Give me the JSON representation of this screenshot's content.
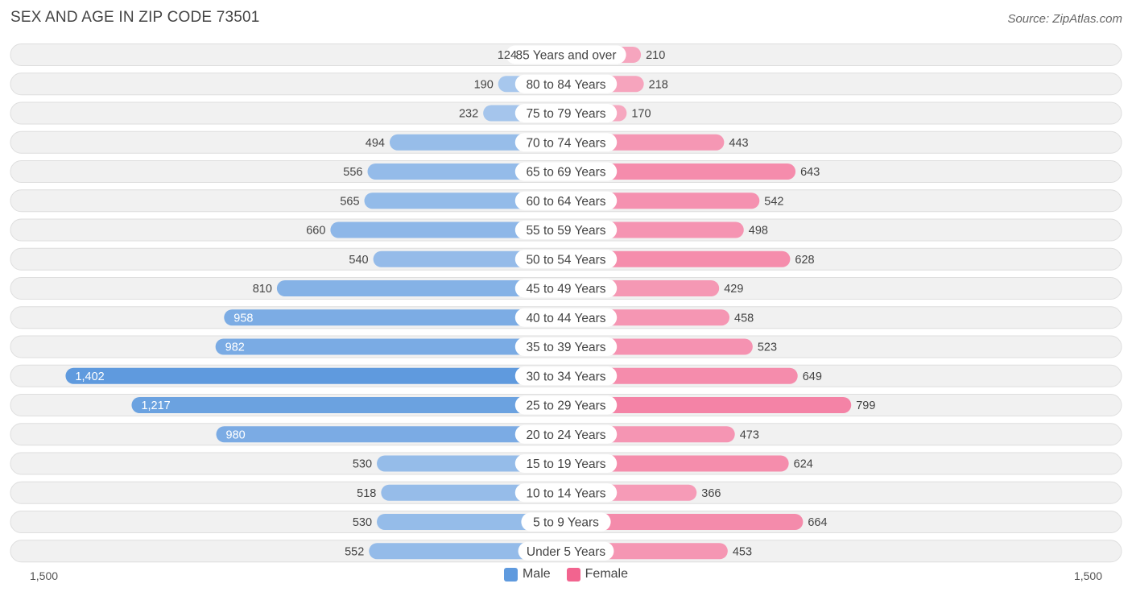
{
  "title": "SEX AND AGE IN ZIP CODE 73501",
  "source": "Source: ZipAtlas.com",
  "colors": {
    "male_light": "#aecbee",
    "male_dark": "#5f9ade",
    "female_light": "#f7b3c8",
    "female_dark": "#f2648f",
    "row_bg": "#f1f1f1",
    "row_border": "#dedede"
  },
  "chart_data": {
    "type": "bar",
    "orientation": "horizontal-diverging",
    "categories": [
      "85 Years and over",
      "80 to 84 Years",
      "75 to 79 Years",
      "70 to 74 Years",
      "65 to 69 Years",
      "60 to 64 Years",
      "55 to 59 Years",
      "50 to 54 Years",
      "45 to 49 Years",
      "40 to 44 Years",
      "35 to 39 Years",
      "30 to 34 Years",
      "25 to 29 Years",
      "20 to 24 Years",
      "15 to 19 Years",
      "10 to 14 Years",
      "5 to 9 Years",
      "Under 5 Years"
    ],
    "series": [
      {
        "name": "Male",
        "values": [
          124,
          190,
          232,
          494,
          556,
          565,
          660,
          540,
          810,
          958,
          982,
          1402,
          1217,
          980,
          530,
          518,
          530,
          552
        ],
        "labels": [
          "124",
          "190",
          "232",
          "494",
          "556",
          "565",
          "660",
          "540",
          "810",
          "958",
          "982",
          "1,402",
          "1,217",
          "980",
          "530",
          "518",
          "530",
          "552"
        ]
      },
      {
        "name": "Female",
        "values": [
          210,
          218,
          170,
          443,
          643,
          542,
          498,
          628,
          429,
          458,
          523,
          649,
          799,
          473,
          624,
          366,
          664,
          453
        ],
        "labels": [
          "210",
          "218",
          "170",
          "443",
          "643",
          "542",
          "498",
          "628",
          "429",
          "458",
          "523",
          "649",
          "799",
          "473",
          "624",
          "366",
          "664",
          "453"
        ]
      }
    ],
    "xlim": [
      -1500,
      1500
    ],
    "axis_labels": {
      "left": "1,500",
      "right": "1,500"
    },
    "legend_position": "bottom-center"
  }
}
